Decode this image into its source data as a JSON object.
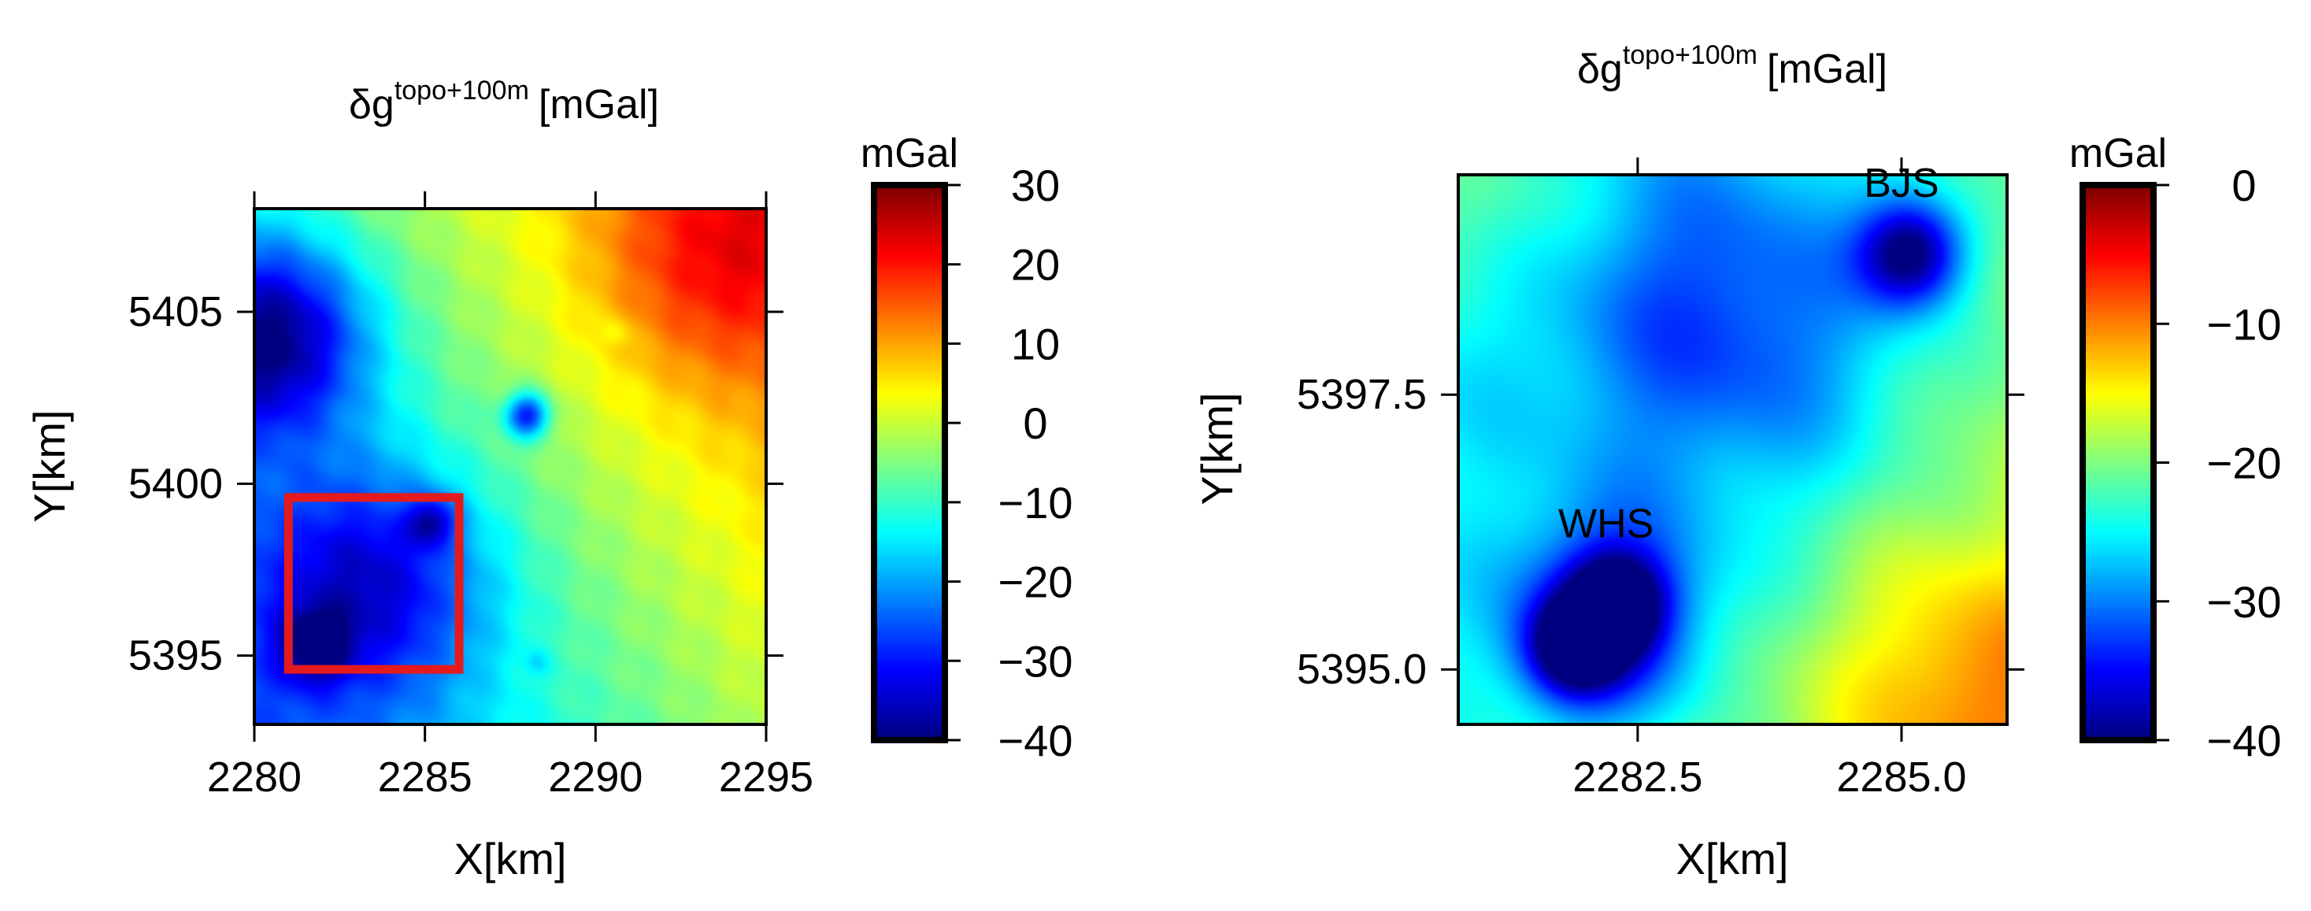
{
  "chart_data": [
    {
      "type": "heatmap",
      "title_symbol": "δg",
      "title_superscript": "topo+100m",
      "title_unit": "[mGal]",
      "xlabel": "X[km]",
      "ylabel": "Y[km]",
      "xlim": [
        2280,
        2295
      ],
      "ylim": [
        5393,
        5408
      ],
      "xticks": [
        2280,
        2285,
        2290,
        2295
      ],
      "xtick_labels": [
        "2280",
        "2285",
        "2290",
        "2295"
      ],
      "yticks": [
        5395,
        5400,
        5405
      ],
      "ytick_labels": [
        "5395",
        "5400",
        "5405"
      ],
      "colorbar": {
        "label": "mGal",
        "range": [
          -40,
          30
        ],
        "ticks": [
          30,
          20,
          10,
          0,
          -10,
          -20,
          -30,
          -40
        ],
        "tick_labels": [
          "30",
          "20",
          "10",
          "0",
          "−10",
          "−20",
          "−30",
          "−40"
        ]
      },
      "field": {
        "base": {
          "value": -12,
          "gradient_x_per_km": 1.6,
          "gradient_y_per_km": 1.0,
          "center": [
            2285,
            5398
          ]
        },
        "features": [
          {
            "x": 2280.5,
            "y": 5404.3,
            "amplitude": -28,
            "sigma": 2.0
          },
          {
            "x": 2283.5,
            "y": 5397.2,
            "amplitude": -20,
            "sigma": 2.4
          },
          {
            "x": 2281.8,
            "y": 5395.3,
            "amplitude": -18,
            "sigma": 0.7
          },
          {
            "x": 2285.2,
            "y": 5398.9,
            "amplitude": -16,
            "sigma": 0.5
          },
          {
            "x": 2288.0,
            "y": 5402.0,
            "amplitude": -26,
            "sigma": 0.45
          },
          {
            "x": 2293.5,
            "y": 5406.5,
            "amplitude": 12,
            "sigma": 2.5
          },
          {
            "x": 2290.6,
            "y": 5404.4,
            "amplitude": -4,
            "sigma": 0.3
          },
          {
            "x": 2288.3,
            "y": 5394.8,
            "amplitude": -4,
            "sigma": 0.25
          }
        ]
      },
      "highlight_box": {
        "xrange": [
          2281,
          2286
        ],
        "yrange": [
          5394.6,
          5399.6
        ],
        "color": "#e41a1c"
      },
      "annotations": []
    },
    {
      "type": "heatmap",
      "title_symbol": "δg",
      "title_superscript": "topo+100m",
      "title_unit": "[mGal]",
      "xlabel": "X[km]",
      "ylabel": "Y[km]",
      "xlim": [
        2280.8,
        2286.0
      ],
      "ylim": [
        5394.5,
        5399.5
      ],
      "xticks": [
        2282.5,
        2285.0
      ],
      "xtick_labels": [
        "2282.5",
        "2285.0"
      ],
      "yticks": [
        5395.0,
        5397.5
      ],
      "ytick_labels": [
        "5395.0",
        "5397.5"
      ],
      "colorbar": {
        "label": "mGal",
        "range": [
          -40,
          0
        ],
        "ticks": [
          0,
          -10,
          -20,
          -30,
          -40
        ],
        "tick_labels": [
          "0",
          "−10",
          "−20",
          "−30",
          "−40"
        ]
      },
      "field": {
        "base": {
          "value": -21,
          "gradient_x_per_km": 1.2,
          "gradient_y_per_km": -0.6,
          "center": [
            2283.4,
            5397.0
          ]
        },
        "features": [
          {
            "x": 2283.4,
            "y": 5398.1,
            "amplitude": -11,
            "sigma": 1.3
          },
          {
            "x": 2282.2,
            "y": 5395.4,
            "amplitude": -14,
            "sigma": 0.7
          },
          {
            "x": 2281.9,
            "y": 5395.2,
            "amplitude": -16,
            "sigma": 0.3
          },
          {
            "x": 2282.3,
            "y": 5395.6,
            "amplitude": -16,
            "sigma": 0.3
          },
          {
            "x": 2285.1,
            "y": 5398.8,
            "amplitude": -18,
            "sigma": 0.35
          },
          {
            "x": 2285.7,
            "y": 5394.8,
            "amplitude": 7,
            "sigma": 0.9
          },
          {
            "x": 2281.0,
            "y": 5399.3,
            "amplitude": 5,
            "sigma": 0.8
          }
        ]
      },
      "highlight_box": null,
      "annotations": [
        {
          "text": "BJS",
          "x": 2285.0,
          "y": 5399.3
        },
        {
          "text": "WHS",
          "x": 2282.2,
          "y": 5396.2
        }
      ]
    }
  ]
}
